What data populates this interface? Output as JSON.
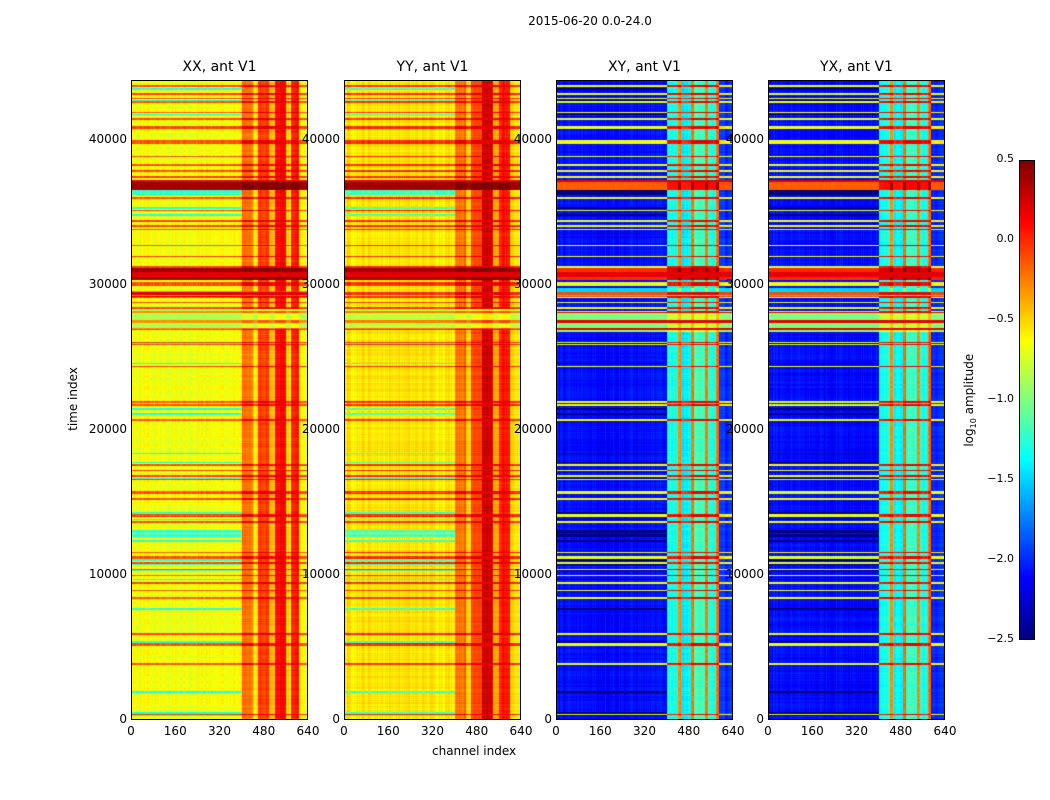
{
  "suptitle": "2015-06-20 0.0-24.0",
  "chart_data": {
    "type": "heatmap",
    "title": "2015-06-20 0.0-24.0",
    "xlabel": "channel index",
    "ylabel": "time index",
    "xlim": [
      0,
      640
    ],
    "ylim": [
      0,
      44140
    ],
    "xticks": [
      "0",
      "160",
      "320",
      "480",
      "640"
    ],
    "xtick_values": [
      0,
      160,
      320,
      480,
      640
    ],
    "yticks": [
      "0",
      "10000",
      "20000",
      "30000",
      "40000"
    ],
    "ytick_values": [
      0,
      10000,
      20000,
      30000,
      40000
    ],
    "colormap": "jet",
    "colorbar": {
      "label": "log10 amplitude",
      "label_main": "log",
      "label_sub": "10",
      "label_rest": " amplitude",
      "range": [
        -2.5,
        0.5
      ],
      "ticks": [
        "0.5",
        "0.0",
        "−0.5",
        "−1.0",
        "−1.5",
        "−2.0",
        "−2.5"
      ],
      "tick_values": [
        0.5,
        0,
        -0.5,
        -1,
        -1.5,
        -2,
        -2.5
      ]
    },
    "panels": [
      {
        "title": "XX, ant V1",
        "channel_profile": [
          [
            0,
            400,
            -0.65
          ],
          [
            400,
            440,
            -0.2
          ],
          [
            440,
            460,
            -0.55
          ],
          [
            460,
            500,
            -0.05
          ],
          [
            500,
            520,
            -0.45
          ],
          [
            520,
            560,
            0.1
          ],
          [
            560,
            580,
            -0.5
          ],
          [
            580,
            610,
            0.05
          ],
          [
            610,
            640,
            -0.6
          ]
        ],
        "time_bands": [
          [
            36600,
            37300,
            0.4
          ],
          [
            30400,
            31200,
            0.4
          ],
          [
            27000,
            28400,
            -0.85
          ],
          [
            29200,
            29600,
            -0.3
          ]
        ],
        "flag_boost": 0.55
      },
      {
        "title": "YY, ant V1",
        "channel_profile": [
          [
            0,
            400,
            -0.55
          ],
          [
            400,
            440,
            -0.2
          ],
          [
            440,
            460,
            -0.5
          ],
          [
            460,
            500,
            -0.05
          ],
          [
            500,
            540,
            0.25
          ],
          [
            540,
            560,
            -0.4
          ],
          [
            560,
            600,
            0.05
          ],
          [
            600,
            640,
            -0.55
          ]
        ],
        "time_bands": [
          [
            36600,
            37300,
            0.4
          ],
          [
            30400,
            31200,
            0.4
          ],
          [
            27000,
            28400,
            -0.8
          ]
        ],
        "flag_boost": 0.55
      },
      {
        "title": "XY, ant V1",
        "channel_profile": [
          [
            0,
            400,
            -2.1
          ],
          [
            400,
            440,
            -1.3
          ],
          [
            440,
            450,
            -0.3
          ],
          [
            450,
            490,
            -1.4
          ],
          [
            490,
            500,
            -0.2
          ],
          [
            500,
            540,
            -1.2
          ],
          [
            540,
            550,
            -0.3
          ],
          [
            550,
            580,
            -1.3
          ],
          [
            580,
            590,
            -0.2
          ],
          [
            590,
            640,
            -2.0
          ]
        ],
        "time_bands": [
          [
            36600,
            37300,
            -0.15
          ],
          [
            30400,
            31200,
            0.0
          ],
          [
            26800,
            28200,
            -1.0
          ],
          [
            29200,
            29800,
            -1.5
          ]
        ],
        "flag_boost": 1.4
      },
      {
        "title": "YX, ant V1",
        "channel_profile": [
          [
            0,
            400,
            -2.1
          ],
          [
            400,
            440,
            -1.3
          ],
          [
            440,
            450,
            -0.3
          ],
          [
            450,
            490,
            -1.4
          ],
          [
            490,
            500,
            -0.2
          ],
          [
            500,
            540,
            -1.2
          ],
          [
            540,
            550,
            -0.3
          ],
          [
            550,
            580,
            -1.3
          ],
          [
            580,
            590,
            -0.2
          ],
          [
            590,
            640,
            -2.0
          ]
        ],
        "time_bands": [
          [
            36600,
            37300,
            -0.15
          ],
          [
            30400,
            31200,
            0.0
          ],
          [
            26800,
            28200,
            -1.0
          ],
          [
            29200,
            29800,
            -1.5
          ]
        ],
        "flag_boost": 1.4
      }
    ]
  }
}
